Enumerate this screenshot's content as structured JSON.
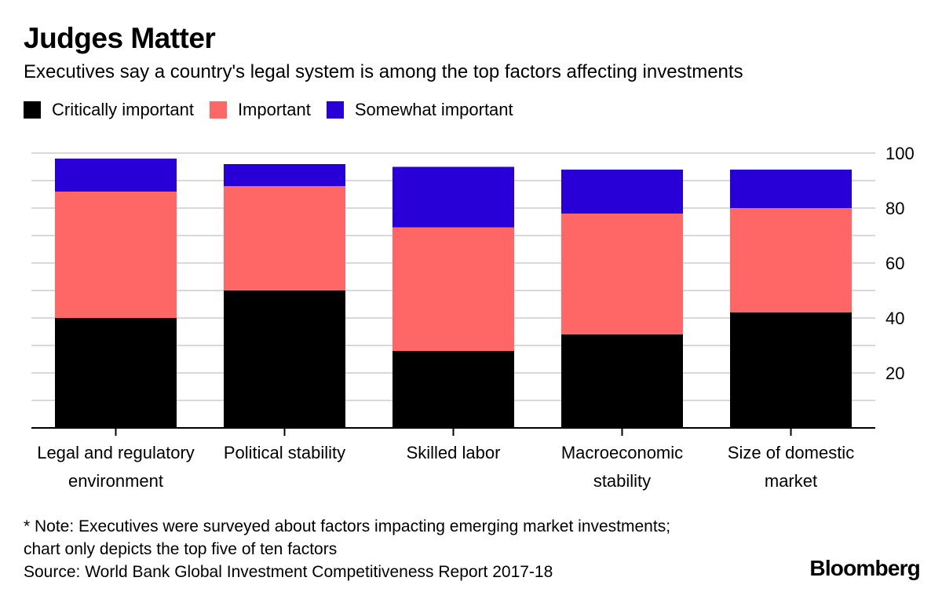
{
  "header": {
    "title": "Judges Matter",
    "subtitle": "Executives say a country's legal system is among the top factors affecting investments"
  },
  "legend": [
    {
      "label": "Critically important",
      "color": "#000000"
    },
    {
      "label": "Important",
      "color": "#ff6666"
    },
    {
      "label": "Somewhat important",
      "color": "#2800d7"
    }
  ],
  "footer": {
    "note_line1": "* Note: Executives were surveyed about factors impacting emerging market investments;",
    "note_line2": "chart only depicts the top five of ten factors",
    "source": "Source: World Bank Global Investment Competitiveness Report 2017-18",
    "brand": "Bloomberg"
  },
  "chart_data": {
    "type": "bar",
    "stacked": true,
    "categories": [
      [
        "Legal and regulatory",
        "environment"
      ],
      [
        "Political stability"
      ],
      [
        "Skilled labor"
      ],
      [
        "Macroeconomic",
        "stability"
      ],
      [
        "Size of domestic",
        "market"
      ]
    ],
    "series": [
      {
        "name": "Critically important",
        "color": "#000000",
        "values": [
          40,
          50,
          28,
          34,
          42
        ]
      },
      {
        "name": "Important",
        "color": "#ff6666",
        "values": [
          46,
          38,
          45,
          44,
          38
        ]
      },
      {
        "name": "Somewhat important",
        "color": "#2800d7",
        "values": [
          12,
          8,
          22,
          16,
          14
        ]
      }
    ],
    "ylim": [
      0,
      100
    ],
    "yticks": [
      20,
      40,
      60,
      80,
      100
    ],
    "grid": true,
    "y_axis_position": "right",
    "legend_position": "top-left"
  }
}
